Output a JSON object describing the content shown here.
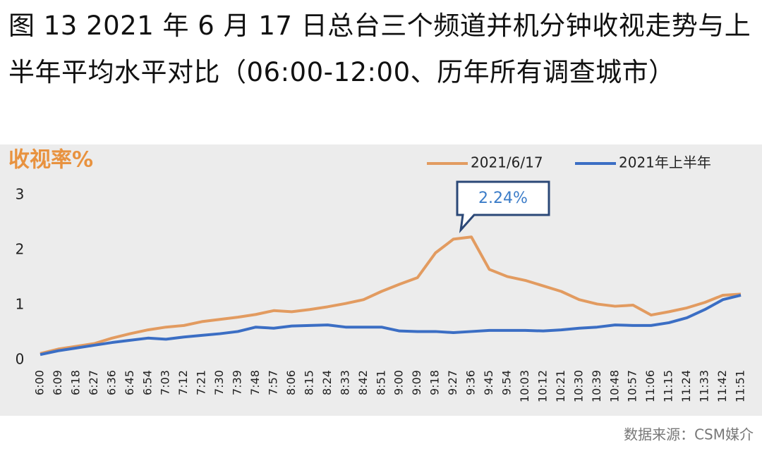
{
  "chart_data": {
    "type": "line",
    "title": "图 13 2021 年 6 月 17 日总台三个频道并机分钟收视走势与上半年平均水平对比（06:00-12:00、历年所有调查城市）",
    "y_label": "收视率%",
    "source": "数据来源：CSM媒介",
    "annotation": "2.24%",
    "categories": [
      "6:00",
      "6:09",
      "6:18",
      "6:27",
      "6:36",
      "6:45",
      "6:54",
      "7:03",
      "7:12",
      "7:21",
      "7:30",
      "7:39",
      "7:48",
      "7:57",
      "8:06",
      "8:15",
      "8:24",
      "8:33",
      "8:42",
      "8:51",
      "9:00",
      "9:09",
      "9:18",
      "9:27",
      "9:36",
      "9:45",
      "9:54",
      "10:03",
      "10:12",
      "10:21",
      "10:30",
      "10:39",
      "10:48",
      "10:57",
      "11:06",
      "11:15",
      "11:24",
      "11:33",
      "11:42",
      "11:51"
    ],
    "series": [
      {
        "name": "2021/6/17",
        "color": "#e29b60",
        "values": [
          0.12,
          0.2,
          0.25,
          0.3,
          0.4,
          0.48,
          0.55,
          0.6,
          0.63,
          0.7,
          0.74,
          0.78,
          0.83,
          0.9,
          0.88,
          0.92,
          0.97,
          1.03,
          1.1,
          1.25,
          1.38,
          1.5,
          1.95,
          2.2,
          2.24,
          1.65,
          1.52,
          1.45,
          1.35,
          1.25,
          1.1,
          1.02,
          0.98,
          1.0,
          0.82,
          0.88,
          0.95,
          1.05,
          1.18,
          1.2
        ]
      },
      {
        "name": "2021年上半年",
        "color": "#3b6ec4",
        "values": [
          0.1,
          0.17,
          0.22,
          0.27,
          0.32,
          0.36,
          0.4,
          0.38,
          0.42,
          0.45,
          0.48,
          0.52,
          0.6,
          0.58,
          0.62,
          0.63,
          0.64,
          0.6,
          0.6,
          0.6,
          0.53,
          0.52,
          0.52,
          0.5,
          0.52,
          0.54,
          0.54,
          0.54,
          0.53,
          0.55,
          0.58,
          0.6,
          0.64,
          0.63,
          0.63,
          0.68,
          0.77,
          0.92,
          1.1,
          1.18
        ]
      }
    ],
    "ylim": [
      0,
      3
    ],
    "yticks": [
      0,
      1,
      2,
      3
    ],
    "grid": false
  }
}
